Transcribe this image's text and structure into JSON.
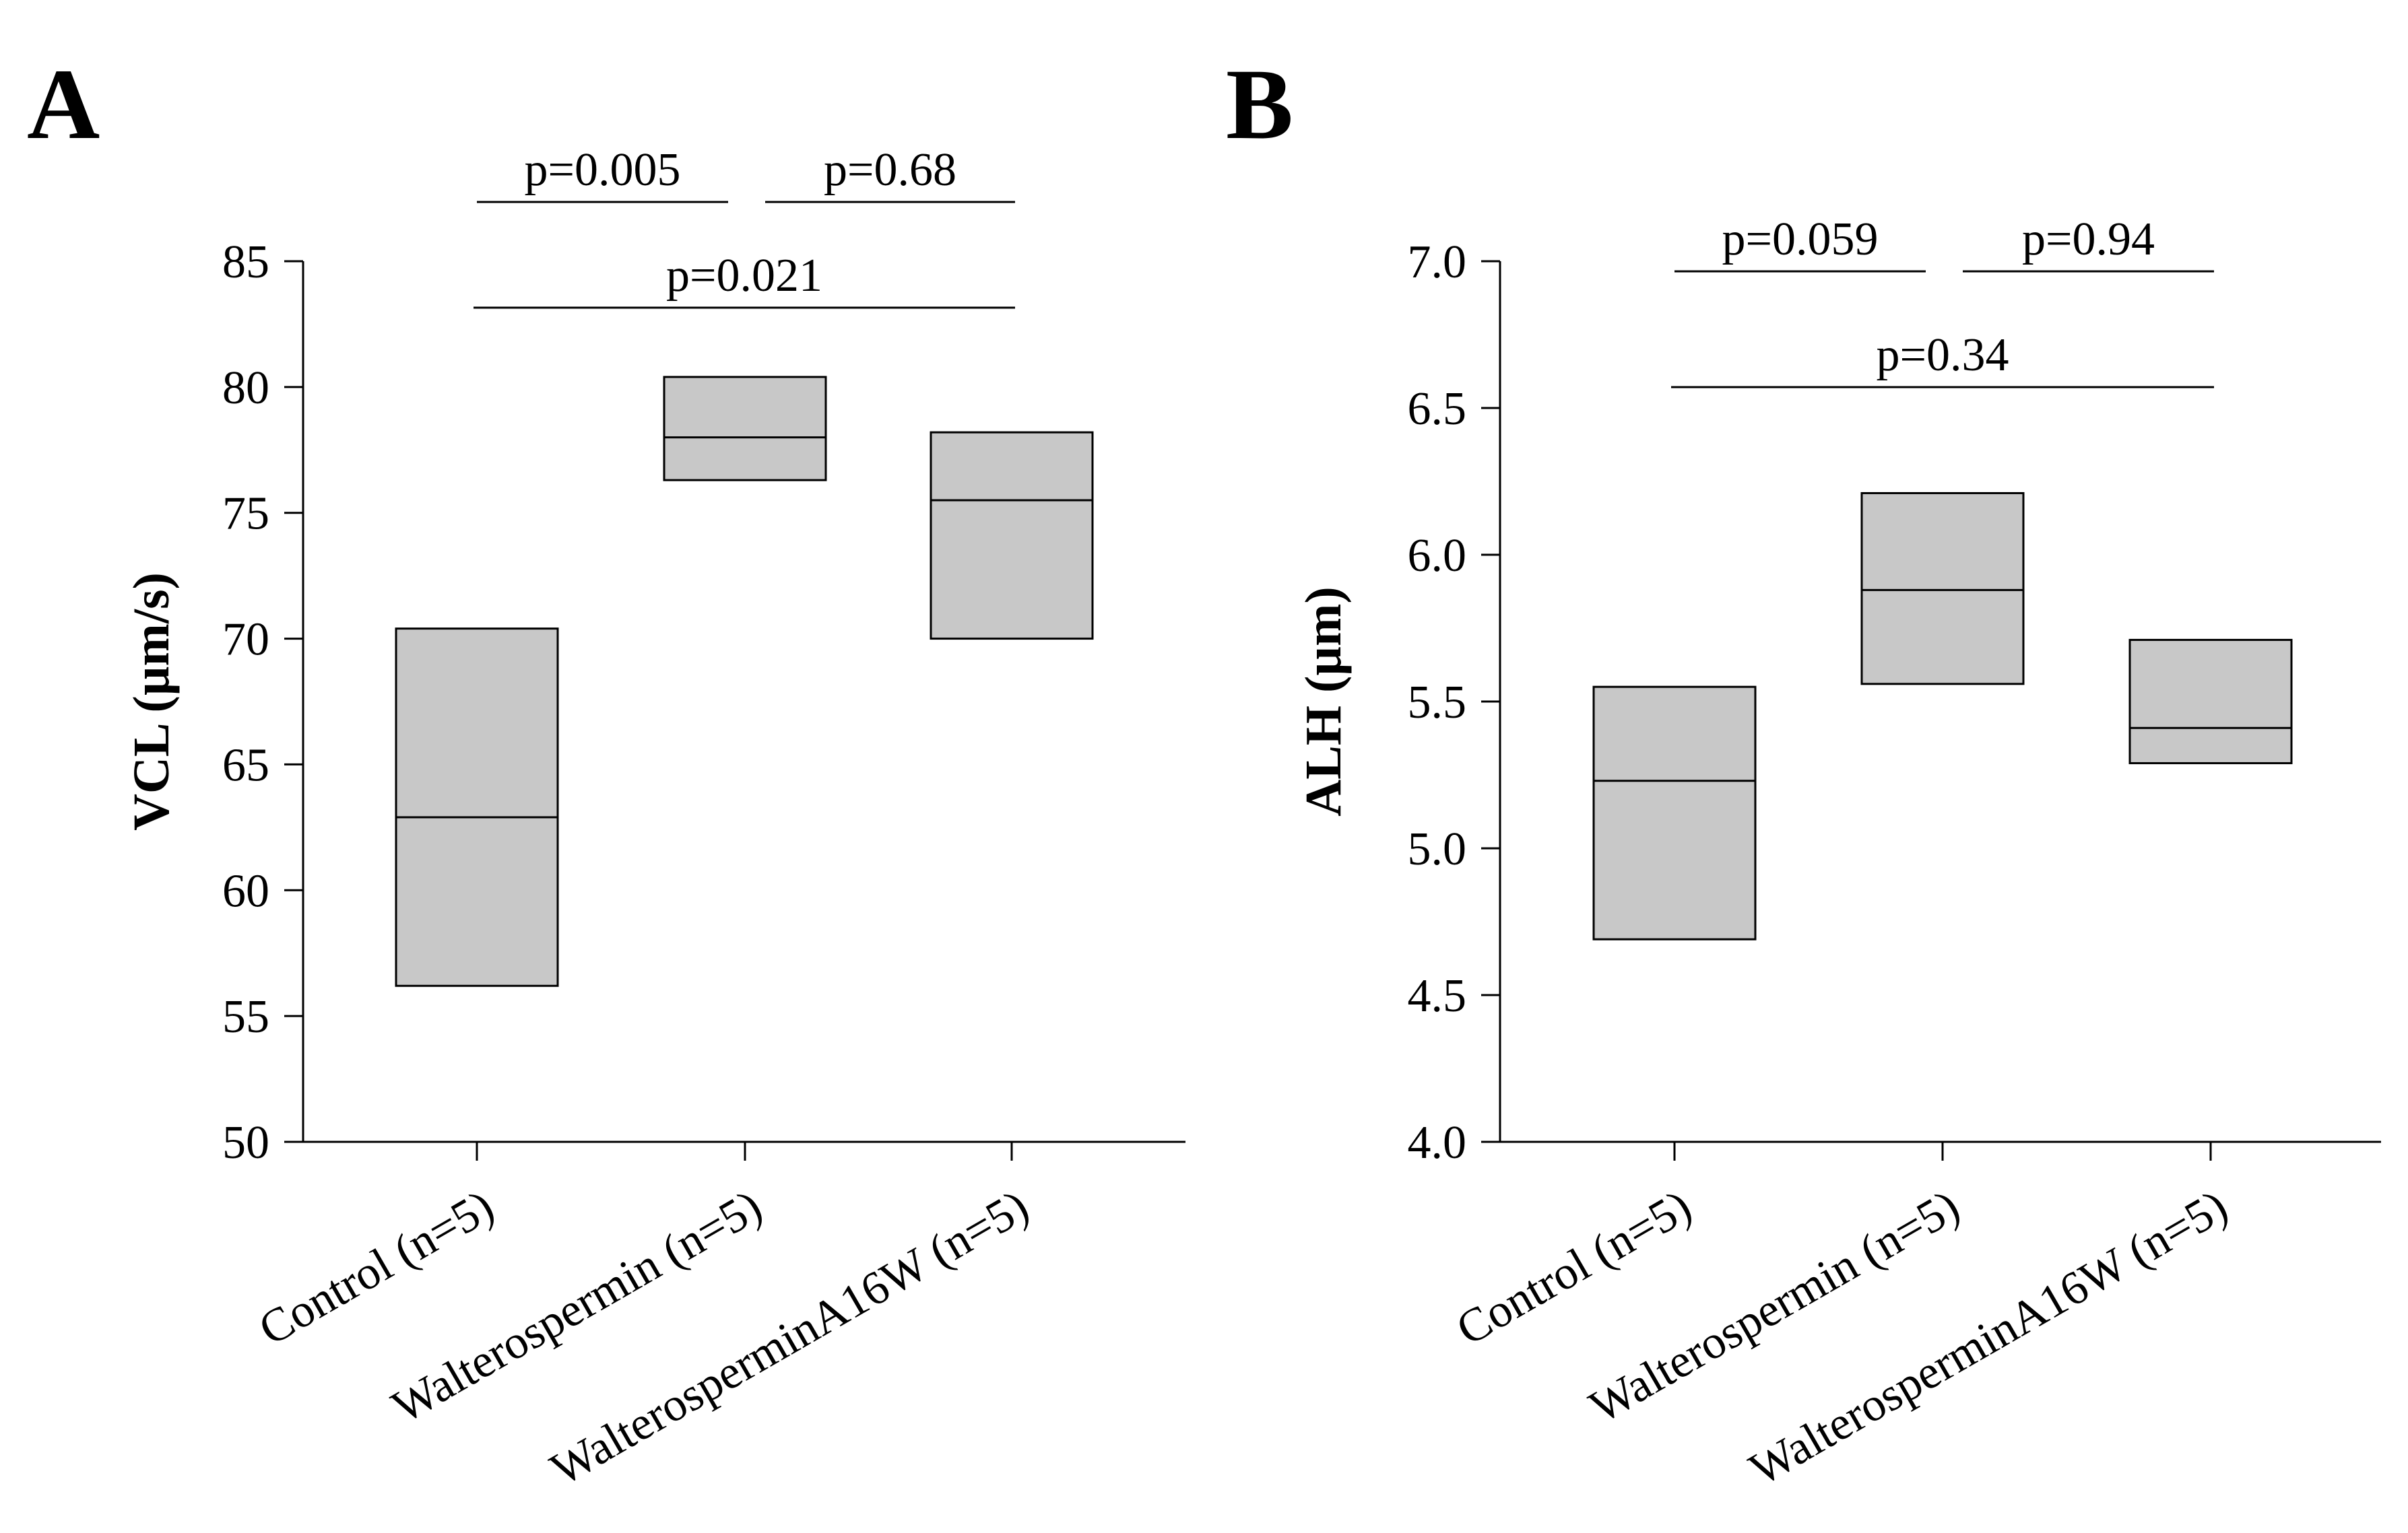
{
  "chart_data": [
    {
      "type": "box",
      "panel": "A",
      "ylabel": "VCL (µm/s)",
      "ylim": [
        50,
        85
      ],
      "yticks": [
        50,
        55,
        60,
        65,
        70,
        75,
        80,
        85
      ],
      "categories": [
        "Control (n=5)",
        "Walterospermin (n=5)",
        "WalterosperminA16W (n=5)"
      ],
      "boxes": [
        {
          "q1": 56.2,
          "median": 62.9,
          "q3": 70.4
        },
        {
          "q1": 76.3,
          "median": 78.0,
          "q3": 80.4
        },
        {
          "q1": 70.0,
          "median": 75.5,
          "q3": 78.2
        }
      ],
      "comparisons": [
        {
          "from": 0,
          "to": 1,
          "label": "p=0.005",
          "level": 2
        },
        {
          "from": 1,
          "to": 2,
          "label": "p=0.68",
          "level": 2
        },
        {
          "from": 0,
          "to": 2,
          "label": "p=0.021",
          "level": 1
        }
      ]
    },
    {
      "type": "box",
      "panel": "B",
      "ylabel": "ALH (µm)",
      "ylim": [
        4.0,
        7.0
      ],
      "yticks": [
        4.0,
        4.5,
        5.0,
        5.5,
        6.0,
        6.5,
        7.0
      ],
      "categories": [
        "Control (n=5)",
        "Walterospermin (n=5)",
        "WalterosperminA16W (n=5)"
      ],
      "boxes": [
        {
          "q1": 4.69,
          "median": 5.23,
          "q3": 5.55
        },
        {
          "q1": 5.56,
          "median": 5.88,
          "q3": 6.21
        },
        {
          "q1": 5.29,
          "median": 5.41,
          "q3": 5.71
        }
      ],
      "comparisons": [
        {
          "from": 0,
          "to": 1,
          "label": "p=0.059",
          "level": 2
        },
        {
          "from": 1,
          "to": 2,
          "label": "p=0.94",
          "level": 2
        },
        {
          "from": 0,
          "to": 2,
          "label": "p=0.34",
          "level": 1
        }
      ]
    }
  ],
  "style": {
    "box_fill": "#c8c8c8",
    "line_color": "#000000"
  }
}
